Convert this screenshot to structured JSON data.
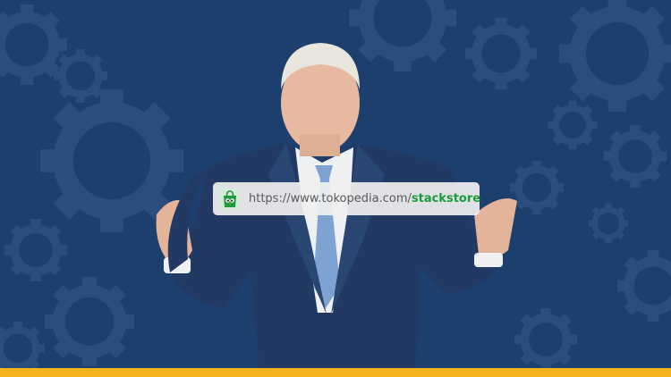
{
  "colors": {
    "background": "#1d3f6e",
    "gear": "#2a4d7c",
    "bottom_bar": "#f2b31c",
    "store_green": "#1e9b3c"
  },
  "banner": {
    "url_prefix": "https://www.tokopedia.com/",
    "store_name": "stackstore",
    "icon": "tokopedia-shop-icon"
  }
}
